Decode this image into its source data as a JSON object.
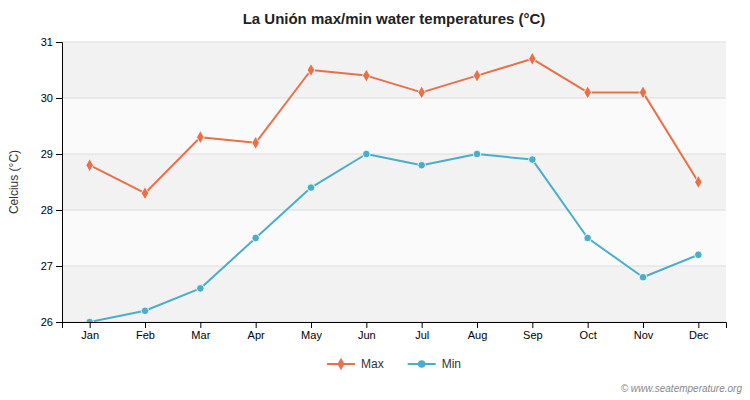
{
  "chart_data": {
    "type": "line",
    "title": "La Unión max/min water temperatures (°C)",
    "ylabel": "Celcius (°C)",
    "categories": [
      "Jan",
      "Feb",
      "Mar",
      "Apr",
      "May",
      "Jun",
      "Jul",
      "Aug",
      "Sep",
      "Oct",
      "Nov",
      "Dec"
    ],
    "series": [
      {
        "name": "Max",
        "color": "#e8714a",
        "marker": "diamond",
        "values": [
          28.8,
          28.3,
          29.3,
          29.2,
          30.5,
          30.4,
          30.1,
          30.4,
          30.7,
          30.1,
          30.1,
          28.5
        ]
      },
      {
        "name": "Min",
        "color": "#4aaec9",
        "marker": "circle",
        "values": [
          26.0,
          26.2,
          26.6,
          27.5,
          28.4,
          29.0,
          28.8,
          29.0,
          28.9,
          27.5,
          26.8,
          27.2
        ]
      }
    ],
    "ylim": [
      26,
      31
    ],
    "yticks": [
      26,
      27,
      28,
      29,
      30,
      31
    ],
    "grid": true,
    "legend": "bottom",
    "annotations": [
      "© www.seatemperature.org"
    ]
  }
}
